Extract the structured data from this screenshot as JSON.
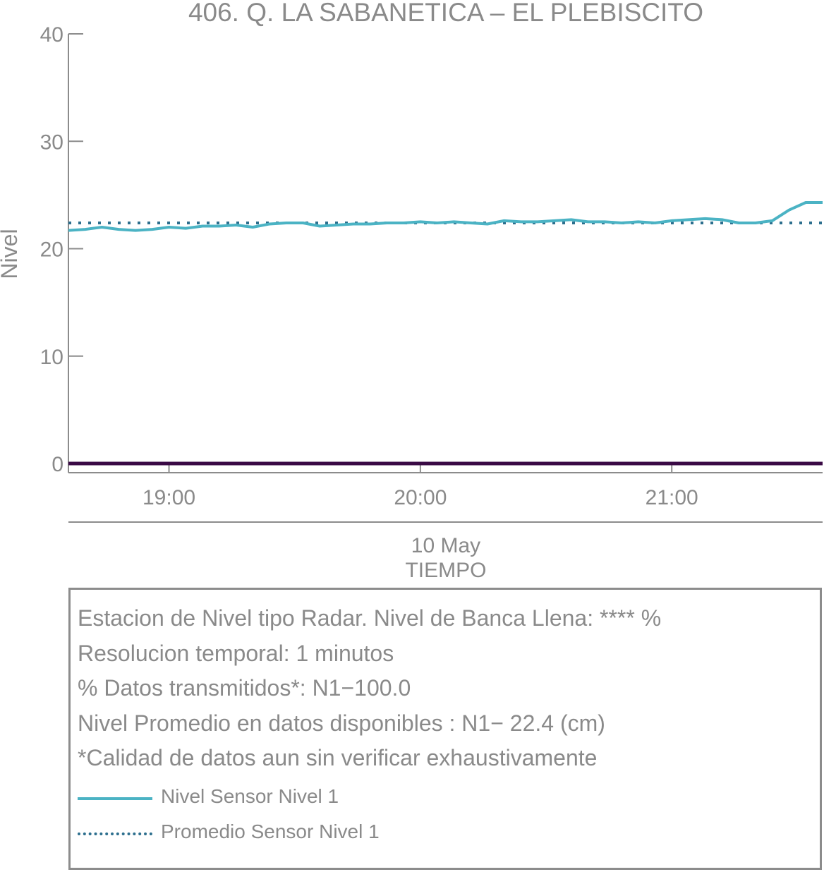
{
  "chart_data": {
    "type": "line",
    "title": "406. Q. LA SABANETICA – EL PLEBISCITO",
    "ylabel": "Nivel",
    "xlabel": "TIEMPO",
    "date_label": "10 May",
    "ylim": [
      0,
      40
    ],
    "y_ticks": [
      0,
      10,
      20,
      30,
      40
    ],
    "x_ticks": [
      {
        "label": "19:00",
        "minute": 0
      },
      {
        "label": "20:00",
        "minute": 60
      },
      {
        "label": "21:00",
        "minute": 120
      }
    ],
    "xlim_minutes": [
      -24,
      156
    ],
    "colors": {
      "level": "#4bb3c4",
      "average": "#2d6f8e",
      "zero_line": "#3a0a45"
    },
    "series": [
      {
        "name": "Nivel Sensor Nivel 1",
        "style": "solid",
        "x": [
          -24,
          -20,
          -16,
          -12,
          -8,
          -4,
          0,
          4,
          8,
          12,
          16,
          20,
          24,
          28,
          32,
          36,
          40,
          44,
          48,
          52,
          56,
          60,
          64,
          68,
          72,
          76,
          80,
          84,
          88,
          92,
          96,
          100,
          104,
          108,
          112,
          116,
          120,
          124,
          128,
          132,
          136,
          140,
          144,
          148,
          152,
          156
        ],
        "values": [
          21.7,
          21.8,
          22.0,
          21.8,
          21.7,
          21.8,
          22.0,
          21.9,
          22.1,
          22.1,
          22.2,
          22.0,
          22.3,
          22.4,
          22.4,
          22.1,
          22.2,
          22.3,
          22.3,
          22.4,
          22.4,
          22.5,
          22.4,
          22.5,
          22.4,
          22.3,
          22.6,
          22.5,
          22.5,
          22.6,
          22.7,
          22.5,
          22.5,
          22.4,
          22.5,
          22.4,
          22.6,
          22.7,
          22.8,
          22.7,
          22.4,
          22.4,
          22.6,
          23.6,
          24.3,
          24.3
        ]
      },
      {
        "name": "Promedio Sensor Nivel 1",
        "style": "dotted",
        "x": [
          -24,
          156
        ],
        "values": [
          22.4,
          22.4
        ]
      },
      {
        "name": "",
        "style": "solid-dark",
        "x": [
          -24,
          156
        ],
        "values": [
          0,
          0
        ]
      }
    ]
  },
  "info": {
    "line1": "Estacion de Nivel tipo Radar. Nivel de Banca Llena: **** %",
    "line2": "Resolucion temporal: 1 minutos",
    "line3": "% Datos transmitidos*: N1−100.0",
    "line4": "Nivel Promedio en datos disponibles : N1− 22.4 (cm)",
    "line5": "*Calidad de datos aun sin verificar exhaustivamente"
  },
  "legend": {
    "level_label": "Nivel Sensor Nivel 1",
    "average_label": "Promedio Sensor Nivel 1"
  }
}
